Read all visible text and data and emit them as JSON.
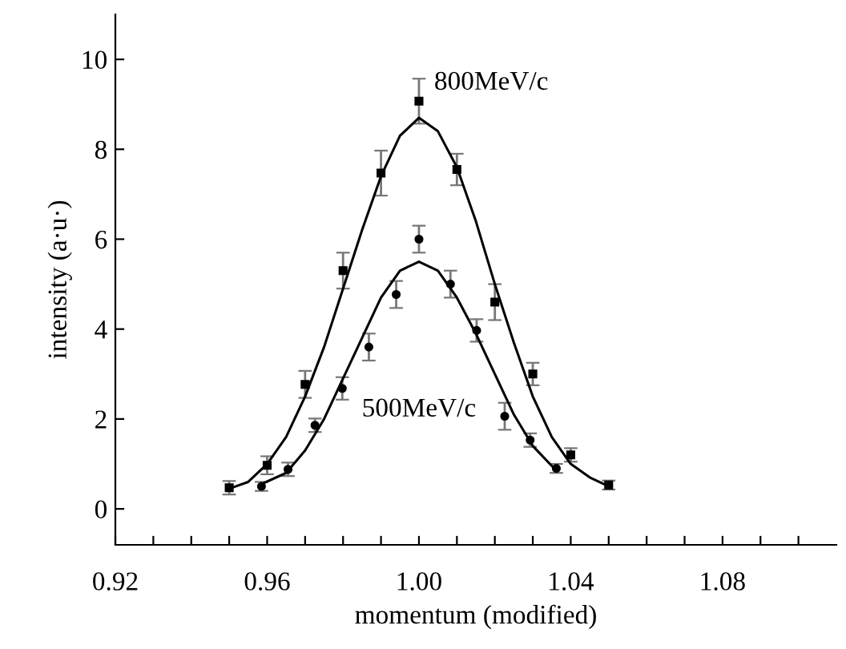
{
  "chart_data": {
    "type": "scatter",
    "xlabel": "momentum (modified)",
    "ylabel": "intensity (a·u·)",
    "xlim": [
      0.92,
      1.11
    ],
    "ylim": [
      -0.8,
      11
    ],
    "xticks": [
      0.92,
      {
        "value": 0.93,
        "label": null
      },
      {
        "value": 0.94,
        "label": null
      },
      {
        "value": 0.95,
        "label": null
      },
      0.96,
      {
        "value": 0.97,
        "label": null
      },
      {
        "value": 0.98,
        "label": null
      },
      {
        "value": 0.99,
        "label": null
      },
      {
        "value": 1.0,
        "label": "1.00"
      },
      {
        "value": 1.01,
        "label": null
      },
      {
        "value": 1.02,
        "label": null
      },
      {
        "value": 1.03,
        "label": null
      },
      1.04,
      {
        "value": 1.05,
        "label": null
      },
      {
        "value": 1.06,
        "label": null
      },
      {
        "value": 1.07,
        "label": null
      },
      1.08,
      {
        "value": 1.09,
        "label": null
      },
      {
        "value": 1.1,
        "label": null
      }
    ],
    "yticks": [
      0,
      2,
      4,
      6,
      8,
      10
    ],
    "grid": false,
    "legend": false,
    "series": [
      {
        "name": "800MeV/c",
        "marker": "square",
        "color": "#000000",
        "x": [
          0.95,
          0.96,
          0.97,
          0.98,
          0.99,
          1.0,
          1.01,
          1.02,
          1.03,
          1.04,
          1.05
        ],
        "values": [
          0.47,
          0.97,
          2.77,
          5.3,
          7.47,
          9.07,
          7.55,
          4.6,
          3.0,
          1.2,
          0.53
        ],
        "errors": [
          0.15,
          0.2,
          0.3,
          0.4,
          0.5,
          0.5,
          0.35,
          0.4,
          0.25,
          0.15,
          0.1
        ]
      },
      {
        "name": "500MeV/c",
        "marker": "circle",
        "color": "#000000",
        "x": [
          0.9585,
          0.9655,
          0.9726,
          0.9798,
          0.9868,
          0.994,
          1.0,
          1.0083,
          1.0152,
          1.0226,
          1.0293,
          1.0362
        ],
        "values": [
          0.5,
          0.88,
          1.86,
          2.68,
          3.6,
          4.77,
          6.0,
          5.0,
          3.97,
          2.06,
          1.53,
          0.9
        ],
        "errors": [
          0.1,
          0.15,
          0.15,
          0.25,
          0.3,
          0.3,
          0.3,
          0.3,
          0.25,
          0.3,
          0.15,
          0.1
        ]
      },
      {
        "type": "line",
        "color": "#000000",
        "x": [
          0.95,
          0.955,
          0.96,
          0.965,
          0.97,
          0.975,
          0.98,
          0.985,
          0.99,
          0.995,
          1.0,
          1.005,
          1.01,
          1.015,
          1.02,
          1.025,
          1.03,
          1.035,
          1.04,
          1.045,
          1.05
        ],
        "values": [
          0.45,
          0.6,
          1.0,
          1.6,
          2.5,
          3.6,
          4.9,
          6.2,
          7.4,
          8.3,
          8.7,
          8.4,
          7.6,
          6.4,
          5.0,
          3.7,
          2.5,
          1.6,
          1.0,
          0.7,
          0.5
        ]
      },
      {
        "type": "line",
        "color": "#000000",
        "x": [
          0.9585,
          0.965,
          0.97,
          0.975,
          0.98,
          0.985,
          0.99,
          0.995,
          1.0,
          1.005,
          1.01,
          1.015,
          1.02,
          1.025,
          1.03,
          1.0362
        ],
        "values": [
          0.55,
          0.8,
          1.3,
          2.0,
          2.9,
          3.8,
          4.7,
          5.3,
          5.5,
          5.3,
          4.7,
          3.9,
          3.0,
          2.1,
          1.4,
          0.85
        ]
      }
    ]
  }
}
